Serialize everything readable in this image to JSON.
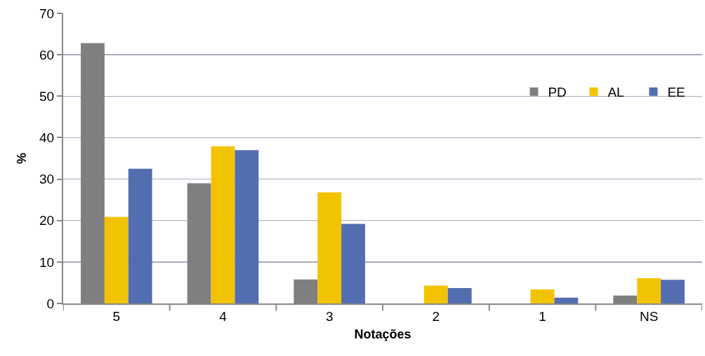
{
  "chart_data": {
    "type": "bar",
    "xlabel": "Notações",
    "ylabel": "%",
    "categories": [
      "5",
      "4",
      "3",
      "2",
      "1",
      "NS"
    ],
    "series": [
      {
        "name": "PD",
        "color": "#7f7f7f",
        "values": [
          62.8,
          29.0,
          5.8,
          0,
          0,
          1.9
        ]
      },
      {
        "name": "AL",
        "color": "#f2c300",
        "values": [
          20.9,
          37.9,
          26.8,
          4.3,
          3.4,
          6.1
        ]
      },
      {
        "name": "EE",
        "color": "#536eb0",
        "values": [
          32.5,
          37.0,
          19.2,
          3.7,
          1.4,
          5.7
        ]
      }
    ],
    "ylim": [
      0,
      70
    ],
    "yticks": [
      0,
      10,
      20,
      30,
      40,
      50,
      60,
      70
    ],
    "grid": "y",
    "legend": "top right"
  }
}
